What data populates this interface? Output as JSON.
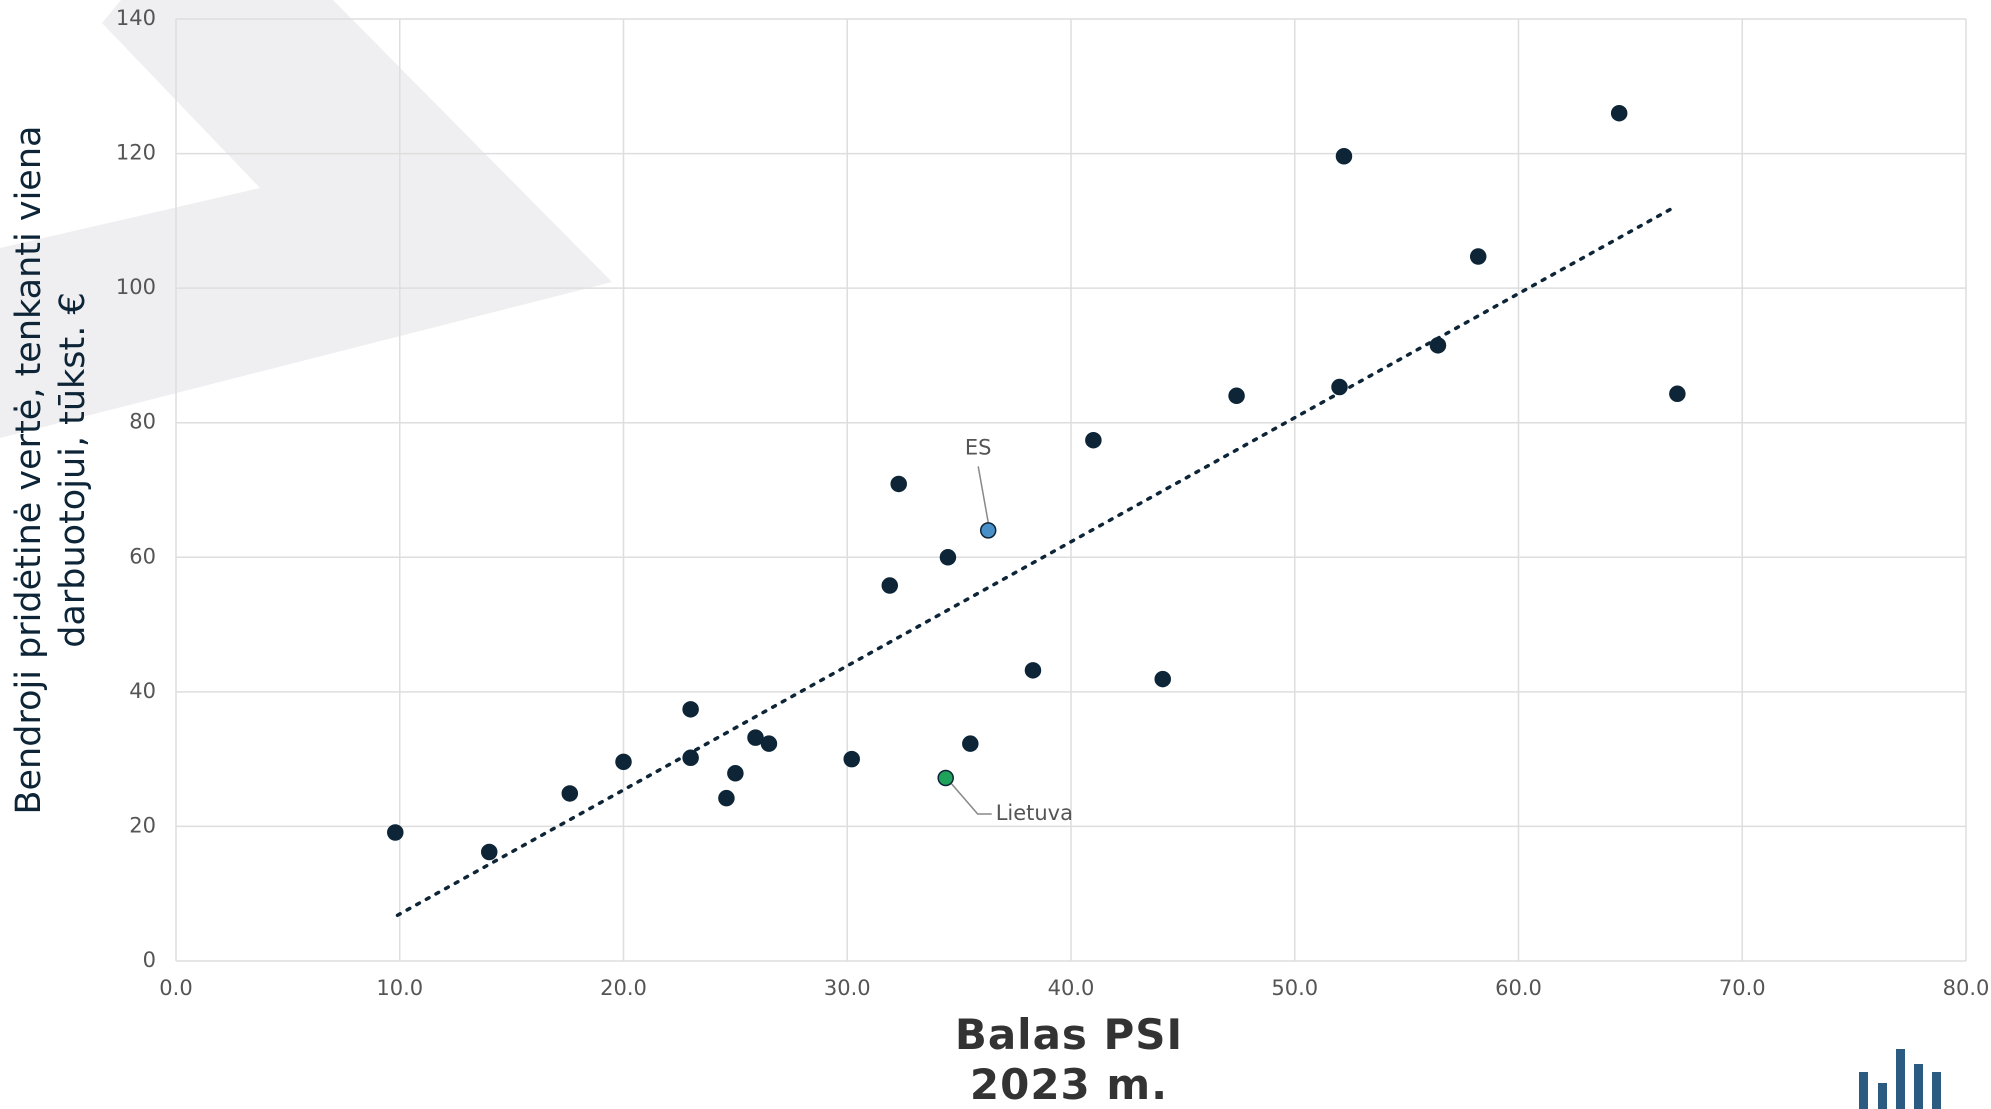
{
  "chart_data": {
    "type": "scatter",
    "xlabel": "Balas PSI 2023 m.",
    "ylabel": "Bendroji pridėtinė vertė, tenkanti viena darbuotojui, tūkst. €",
    "xlim": [
      0,
      80
    ],
    "ylim": [
      0,
      140
    ],
    "xticks": [
      {
        "value": 0,
        "label": "0.0"
      },
      {
        "value": 10,
        "label": "10.0"
      },
      {
        "value": 20,
        "label": "20.0"
      },
      {
        "value": 30,
        "label": "30.0"
      },
      {
        "value": 40,
        "label": "40.0"
      },
      {
        "value": 50,
        "label": "50.0"
      },
      {
        "value": 60,
        "label": "60.0"
      },
      {
        "value": 70,
        "label": "70.0"
      },
      {
        "value": 80,
        "label": "80.0"
      }
    ],
    "yticks": [
      0,
      20,
      40,
      60,
      80,
      100,
      120,
      140
    ],
    "grid": true,
    "series": [
      {
        "color": "#0d2537",
        "x": [
          9.8,
          14.0,
          17.6,
          20.0,
          23.0,
          23.0,
          24.6,
          25.0,
          25.9,
          26.5,
          30.2,
          31.9,
          32.3,
          34.5,
          35.5,
          38.3,
          41.0,
          44.1,
          47.4,
          52.0,
          52.2,
          56.4,
          58.2,
          64.5,
          67.1
        ],
        "y": [
          19.1,
          16.2,
          24.9,
          29.6,
          37.4,
          30.2,
          24.2,
          27.9,
          33.2,
          32.3,
          30.0,
          55.8,
          70.9,
          60.0,
          32.3,
          43.2,
          77.4,
          41.9,
          84.0,
          85.3,
          119.6,
          91.5,
          104.7,
          126.0,
          84.3
        ]
      },
      {
        "name": "ES",
        "color": "#4a90c8",
        "x": [
          36.3
        ],
        "y": [
          64.0
        ]
      },
      {
        "name": "Lietuva",
        "color": "#1fa25a",
        "x": [
          34.4
        ],
        "y": [
          27.2
        ]
      }
    ],
    "trendline": {
      "color": "#0d2537",
      "x": [
        9.9,
        67.0
      ],
      "y": [
        6.8,
        112.1
      ]
    }
  }
}
